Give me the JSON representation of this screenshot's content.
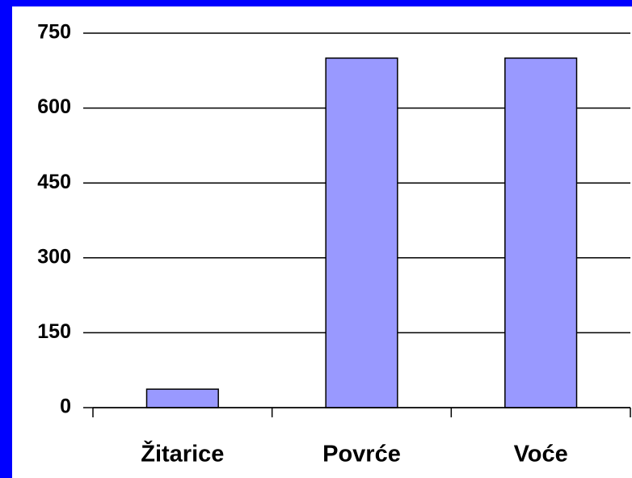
{
  "chart_data": {
    "type": "bar",
    "categories": [
      "Žitarice",
      "Povrće",
      "Voće"
    ],
    "values": [
      37,
      700,
      700
    ],
    "color": "#9999ff",
    "ylim": [
      0,
      750
    ],
    "yticks": [
      0,
      150,
      300,
      450,
      600,
      750
    ],
    "grid": true
  }
}
